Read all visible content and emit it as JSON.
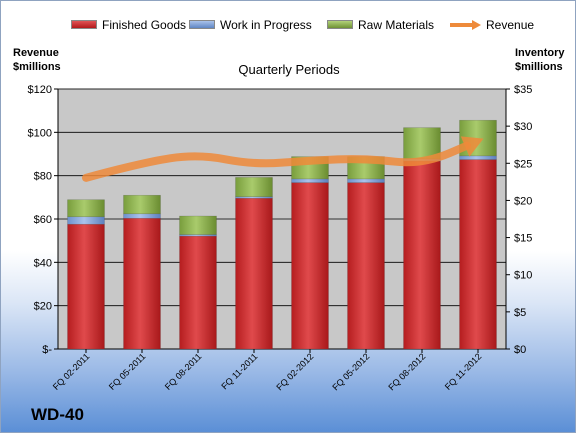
{
  "chart_data": {
    "type": "bar",
    "stacked": true,
    "categories": [
      "FQ 02-2011",
      "FQ 05-2011",
      "FQ 08-2011",
      "FQ 11-2011",
      "FQ 02-2012",
      "FQ 05-2012",
      "FQ 08-2012",
      "FQ 11-2012"
    ],
    "series": [
      {
        "name": "Finished Goods",
        "axis": "right",
        "values": [
          16.8,
          17.6,
          15.2,
          20.3,
          22.4,
          22.4,
          25.3,
          25.5
        ]
      },
      {
        "name": "Work in Progress",
        "axis": "right",
        "values": [
          1.0,
          0.6,
          0.2,
          0.2,
          0.5,
          0.5,
          0.3,
          0.5
        ]
      },
      {
        "name": "Raw Materials",
        "axis": "right",
        "values": [
          2.3,
          2.5,
          2.5,
          2.6,
          3.0,
          3.0,
          4.2,
          4.8
        ]
      },
      {
        "name": "Revenue",
        "type": "line",
        "axis": "left",
        "values": [
          79,
          86,
          90,
          85,
          87,
          88,
          85,
          96
        ]
      }
    ],
    "title": "Quarterly Periods",
    "ylabel_left": "Revenue\n$millions",
    "ylabel_right": "Inventory\n$millions",
    "ylim_left": [
      0,
      120
    ],
    "ylim_right": [
      0,
      35
    ],
    "yticks_left": [
      "$-",
      "$20",
      "$40",
      "$60",
      "$80",
      "$100",
      "$120"
    ],
    "yticks_right": [
      "$0",
      "$5",
      "$10",
      "$15",
      "$20",
      "$25",
      "$30",
      "$35"
    ],
    "grid": true,
    "legend_position": "top",
    "colors": {
      "finished_goods": "#c0292b",
      "work_in_progress": "#7d9fd4",
      "raw_materials": "#8db049",
      "revenue": "#ee8a3a",
      "plot_background": "#c8c8c8"
    }
  },
  "labels": {
    "left_axis_title_line1": "Revenue",
    "left_axis_title_line2": "$millions",
    "right_axis_title_line1": "Inventory",
    "right_axis_title_line2": "$millions",
    "plot_title": "Quarterly Periods",
    "brand": "WD-40"
  }
}
